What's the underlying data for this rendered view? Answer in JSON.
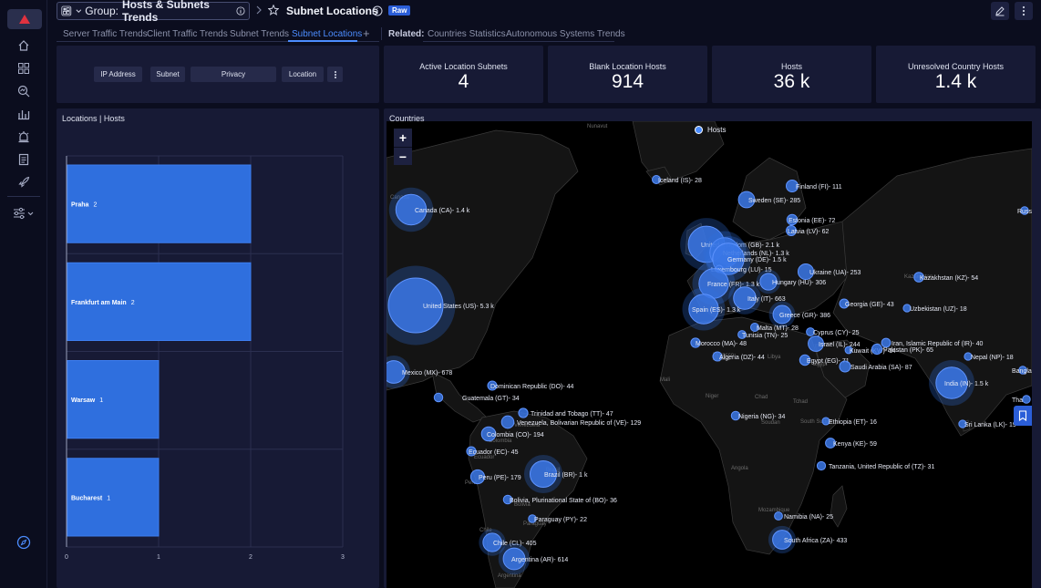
{
  "header": {
    "group_prefix": "Group:",
    "group_name": "Hosts & Subnets Trends",
    "page_title": "Subnet Locations",
    "badge": "Raw"
  },
  "tabs": {
    "items": [
      "Server Traffic Trends",
      "Client Traffic Trends",
      "Subnet Trends",
      "Subnet Locations"
    ],
    "active": "Subnet Locations",
    "related_label": "Related:",
    "related": [
      "Countries Statistics",
      "Autonomous Systems Trends"
    ]
  },
  "filters": {
    "chips": [
      "IP Address",
      "Subnet",
      "Privacy",
      "Location"
    ]
  },
  "kpis": [
    {
      "title": "Active Location Subnets",
      "value": "4"
    },
    {
      "title": "Blank Location Hosts",
      "value": "914"
    },
    {
      "title": "Hosts",
      "value": "36 k"
    },
    {
      "title": "Unresolved Country Hosts",
      "value": "1.4 k"
    }
  ],
  "locations_panel": {
    "title": "Locations | Hosts"
  },
  "chart_data": {
    "type": "bar",
    "orientation": "horizontal",
    "title": "Locations | Hosts",
    "categories": [
      "Praha",
      "Frankfurt am Main",
      "Warsaw",
      "Bucharest"
    ],
    "values": [
      2,
      2,
      1,
      1
    ],
    "xlim": [
      0,
      3
    ],
    "xticks": [
      0,
      1,
      2,
      3
    ],
    "grid": true,
    "color": "#2f6fde"
  },
  "map_panel": {
    "title": "Countries",
    "legend": "Hosts",
    "zoom_in": "+",
    "zoom_out": "−",
    "countries": [
      {
        "label": "Canada (CA)- 1.4 k",
        "value": 1400
      },
      {
        "label": "United States (US)- 5.3 k",
        "value": 5300
      },
      {
        "label": "Mexico (MX)- 678",
        "value": 678
      },
      {
        "label": "Guatemala (GT)- 34",
        "value": 34
      },
      {
        "label": "Dominican Republic (DO)- 44",
        "value": 44
      },
      {
        "label": "Trinidad and Tobago (TT)- 47",
        "value": 47
      },
      {
        "label": "Venezuela, Bolivarian Republic of (VE)- 129",
        "value": 129
      },
      {
        "label": "Colombia (CO)- 194",
        "value": 194
      },
      {
        "label": "Ecuador (EC)- 45",
        "value": 45
      },
      {
        "label": "Peru (PE)- 179",
        "value": 179
      },
      {
        "label": "Brazil (BR)- 1 k",
        "value": 1000
      },
      {
        "label": "Bolivia, Plurinational State of (BO)- 36",
        "value": 36
      },
      {
        "label": "Paraguay (PY)- 22",
        "value": 22
      },
      {
        "label": "Chile (CL)- 405",
        "value": 405
      },
      {
        "label": "Argentina (AR)- 614",
        "value": 614
      },
      {
        "label": "Iceland (IS)- 28",
        "value": 28
      },
      {
        "label": "Finland (FI)- 111",
        "value": 111
      },
      {
        "label": "Sweden (SE)- 285",
        "value": 285
      },
      {
        "label": "Estonia (EE)- 72",
        "value": 72
      },
      {
        "label": "Latvia (LV)- 62",
        "value": 62
      },
      {
        "label": "United Kingdom (GB)- 2.1 k",
        "value": 2100
      },
      {
        "label": "Netherlands (NL)- 1.3 k",
        "value": 1300
      },
      {
        "label": "Germany (DE)- 1.5 k",
        "value": 1500
      },
      {
        "label": "Luxembourg (LU)- 15",
        "value": 15
      },
      {
        "label": "Hungary (HU)- 306",
        "value": 306
      },
      {
        "label": "Ukraine (UA)- 253",
        "value": 253
      },
      {
        "label": "France (FR)- 1.3 k",
        "value": 1300
      },
      {
        "label": "Italy (IT)- 663",
        "value": 663
      },
      {
        "label": "Spain (ES)- 1.3 k",
        "value": 1300
      },
      {
        "label": "Greece (GR)- 386",
        "value": 386
      },
      {
        "label": "Georgia (GE)- 43",
        "value": 43
      },
      {
        "label": "Kazakhstan (KZ)- 54",
        "value": 54
      },
      {
        "label": "Uzbekistan (UZ)- 18",
        "value": 18
      },
      {
        "label": "Malta (MT)- 28",
        "value": 28
      },
      {
        "label": "Cyprus (CY)- 25",
        "value": 25
      },
      {
        "label": "Tunisia (TN)- 25",
        "value": 25
      },
      {
        "label": "Morocco (MA)- 48",
        "value": 48
      },
      {
        "label": "Algeria (DZ)- 44",
        "value": 44
      },
      {
        "label": "Israel (IL)- 244",
        "value": 244
      },
      {
        "label": "Kuwait (KW)- 14",
        "value": 14
      },
      {
        "label": "Iran, Islamic Republic of (IR)- 40",
        "value": 40
      },
      {
        "label": "Pakistan (PK)- 65",
        "value": 65
      },
      {
        "label": "Nepal (NP)- 18",
        "value": 18
      },
      {
        "label": "Egypt (EG)- 71",
        "value": 71
      },
      {
        "label": "Saudi Arabia (SA)- 87",
        "value": 87
      },
      {
        "label": "India (IN)- 1.5 k",
        "value": 1500
      },
      {
        "label": "Bangladesh (B",
        "value": null
      },
      {
        "label": "Sri Lanka (LK)- 19",
        "value": 19
      },
      {
        "label": "Nigeria (NG)- 34",
        "value": 34
      },
      {
        "label": "Ethiopia (ET)- 16",
        "value": 16
      },
      {
        "label": "Kenya (KE)- 59",
        "value": 59
      },
      {
        "label": "Tanzania, United Republic of (TZ)- 31",
        "value": 31
      },
      {
        "label": "Namibia (NA)- 25",
        "value": 25
      },
      {
        "label": "South Africa (ZA)- 433",
        "value": 433
      },
      {
        "label": "Russ",
        "value": null
      },
      {
        "label": "Tha",
        "value": null
      }
    ],
    "basemap_labels": [
      "Canada",
      "Nunavut",
      "Kazakhstan",
      "Chad",
      "Soudan",
      "South Sudan",
      "Tchad",
      "Mozambique",
      "Angola",
      "Chile",
      "Argentina",
      "Perú",
      "Paraguay",
      "Algeria",
      "Morocco",
      "Brasil",
      "Colombia",
      "Venezuela",
      "Bolivia",
      "Ecuador",
      "Niger",
      "Mali",
      "Libya",
      "Egypt"
    ]
  }
}
